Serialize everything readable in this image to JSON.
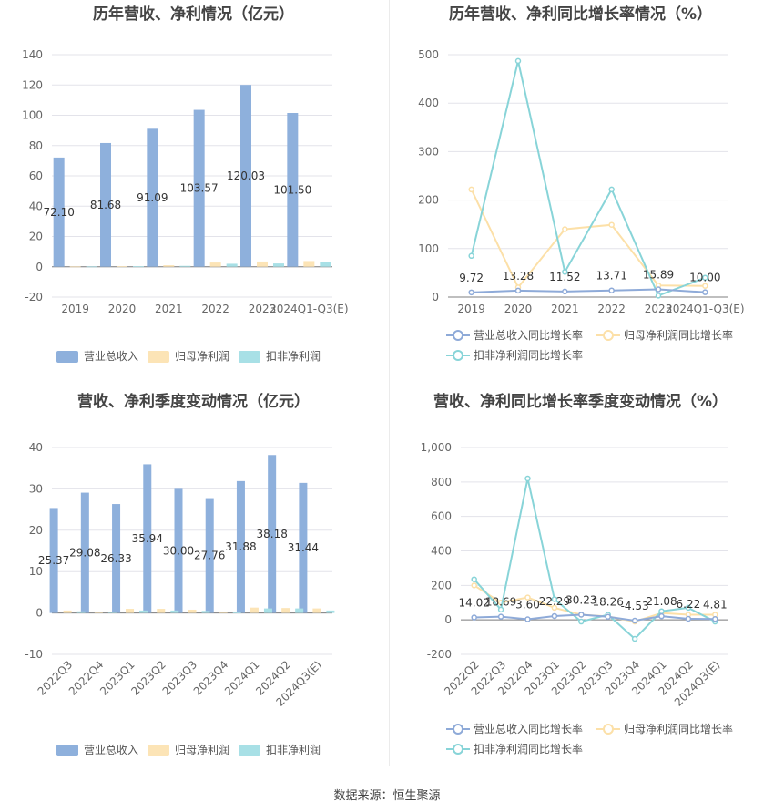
{
  "source_label": "数据来源：恒生聚源",
  "charts": [
    {
      "id": "annual-revenue-profit",
      "type": "bar",
      "title": "历年营收、净利情况（亿元）",
      "categories": [
        "2019",
        "2020",
        "2021",
        "2022",
        "2023",
        "2024Q1-Q3(E)"
      ],
      "series": [
        {
          "name": "营业总收入",
          "color": "#8eb0dc",
          "values": [
            72.1,
            81.68,
            91.09,
            103.57,
            120.03,
            101.5
          ]
        },
        {
          "name": "归母净利润",
          "color": "#fce4b6",
          "values": [
            0.2,
            0.3,
            1.0,
            2.8,
            3.5,
            3.8
          ]
        },
        {
          "name": "扣非净利润",
          "color": "#a8e0e6",
          "values": [
            0.2,
            0.3,
            0.6,
            2.0,
            2.2,
            3.0
          ]
        }
      ],
      "data_labels": [
        "72.10",
        "81.68",
        "91.09",
        "103.57",
        "120.03",
        "101.50"
      ],
      "ylim": [
        -20,
        140
      ],
      "yticks": [
        -20,
        0,
        20,
        40,
        60,
        80,
        100,
        120,
        140
      ],
      "xlabel": "",
      "ylabel": "",
      "grid": true,
      "legend": "bottom"
    },
    {
      "id": "annual-growth-rates",
      "type": "line",
      "title": "历年营收、净利同比增长率情况（%）",
      "categories": [
        "2019",
        "2020",
        "2021",
        "2022",
        "2023",
        "2024Q1-Q3(E)"
      ],
      "series": [
        {
          "name": "营业总收入同比增长率",
          "color": "#8eaad8",
          "values": [
            9.72,
            13.28,
            11.52,
            13.71,
            15.89,
            10.0
          ]
        },
        {
          "name": "归母净利润同比增长率",
          "color": "#fce0a8",
          "values": [
            222,
            20,
            140,
            149,
            24,
            23
          ]
        },
        {
          "name": "扣非净利润同比增长率",
          "color": "#88d4d8",
          "values": [
            85,
            487,
            52,
            222,
            3,
            40
          ]
        }
      ],
      "data_labels": [
        "9.72",
        "13.28",
        "11.52",
        "13.71",
        "15.89",
        "10.00"
      ],
      "ylim": [
        0,
        500
      ],
      "yticks": [
        0,
        100,
        200,
        300,
        400,
        500
      ],
      "xlabel": "",
      "ylabel": "",
      "grid": true,
      "legend": "bottom"
    },
    {
      "id": "quarterly-revenue-profit",
      "type": "bar",
      "title": "营收、净利季度变动情况（亿元）",
      "categories": [
        "2022Q3",
        "2022Q4",
        "2023Q1",
        "2023Q2",
        "2023Q3",
        "2023Q4",
        "2024Q1",
        "2024Q2",
        "2024Q3(E)"
      ],
      "series": [
        {
          "name": "营业总收入",
          "color": "#8eb0dc",
          "values": [
            25.37,
            29.08,
            26.33,
            35.94,
            30.0,
            27.76,
            31.88,
            38.18,
            31.44
          ]
        },
        {
          "name": "归母净利润",
          "color": "#fce4b6",
          "values": [
            0.6,
            0.3,
            1.0,
            1.0,
            0.8,
            0.2,
            1.3,
            1.2,
            1.1
          ]
        },
        {
          "name": "扣非净利润",
          "color": "#a8e0e6",
          "values": [
            0.4,
            0.2,
            0.6,
            0.6,
            0.5,
            0.1,
            1.1,
            1.1,
            0.6
          ]
        }
      ],
      "data_labels": [
        "25.37",
        "29.08",
        "26.33",
        "35.94",
        "30.00",
        "27.76",
        "31.88",
        "38.18",
        "31.44"
      ],
      "ylim": [
        -10,
        40
      ],
      "yticks": [
        -10,
        0,
        10,
        20,
        30,
        40
      ],
      "xlabel": "",
      "ylabel": "",
      "grid": true,
      "legend": "bottom"
    },
    {
      "id": "quarterly-growth-rates",
      "type": "line",
      "title": "营收、净利同比增长率季度变动情况（%）",
      "categories": [
        "2022Q2",
        "2022Q3",
        "2022Q4",
        "2023Q1",
        "2023Q2",
        "2023Q3",
        "2023Q4",
        "2024Q1",
        "2024Q2",
        "2024Q3(E)"
      ],
      "series": [
        {
          "name": "营业总收入同比增长率",
          "color": "#8eaad8",
          "values": [
            14.02,
            18.69,
            3.6,
            22.29,
            30.23,
            18.26,
            -4.53,
            21.08,
            6.22,
            4.81
          ]
        },
        {
          "name": "归母净利润同比增长率",
          "color": "#fce0a8",
          "values": [
            200,
            100,
            130,
            70,
            30,
            20,
            -10,
            40,
            30,
            30
          ]
        },
        {
          "name": "扣非净利润同比增长率",
          "color": "#88d4d8",
          "values": [
            235,
            60,
            820,
            120,
            -10,
            30,
            -110,
            50,
            70,
            -10
          ]
        }
      ],
      "data_labels": [
        "14.02",
        "18.69",
        "3.60",
        "22.29",
        "30.23",
        "18.26",
        "-4.53",
        "21.08",
        "6.22",
        "4.81"
      ],
      "ylim": [
        -200,
        1000
      ],
      "yticks": [
        -200,
        0,
        200,
        400,
        600,
        800,
        1000
      ],
      "ytick_labels": [
        "-200",
        "0",
        "200",
        "400",
        "600",
        "800",
        "1,000"
      ],
      "xlabel": "",
      "ylabel": "",
      "grid": true,
      "legend": "bottom"
    }
  ]
}
